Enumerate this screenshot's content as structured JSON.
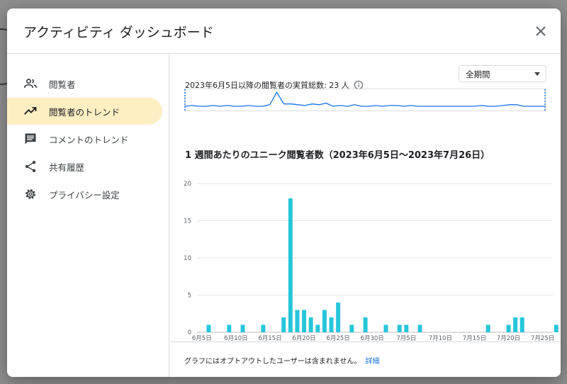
{
  "dialog": {
    "title": "アクティビティ ダッシュボード",
    "close_icon": "close-icon"
  },
  "sidebar": {
    "items": [
      {
        "label": "閲覧者",
        "icon": "people-icon",
        "active": false
      },
      {
        "label": "閲覧者のトレンド",
        "icon": "trending-up-icon",
        "active": true
      },
      {
        "label": "コメントのトレンド",
        "icon": "comment-icon",
        "active": false
      },
      {
        "label": "共有履歴",
        "icon": "share-icon",
        "active": false
      },
      {
        "label": "プライバシー設定",
        "icon": "gear-icon",
        "active": false
      }
    ]
  },
  "main": {
    "summary": "2023年6月5日以降の閲覧者の実質総数: 23 人",
    "period": "全期間",
    "chart_title": "1 週間あたりのユニーク閲覧者数（2023年6月5日〜2023年7月26日）"
  },
  "footer": {
    "text": "グラフにはオプトアウトしたユーザーは含まれません。",
    "link": "詳細"
  },
  "colors": {
    "bar": "#26c6da",
    "line": "#1a73e8",
    "active_bg": "#feefc3"
  },
  "chart_data": {
    "type": "bar",
    "title": "1 週間あたりのユニーク閲覧者数（2023年6月5日〜2023年7月26日）",
    "x_start": "2023-06-05",
    "x_end": "2023-07-26",
    "x_ticks": [
      "6月5日",
      "6月10日",
      "6月15日",
      "6月20日",
      "6月25日",
      "6月30日",
      "7月5日",
      "7月10日",
      "7月15日",
      "7月20日",
      "7月25日"
    ],
    "y_ticks": [
      "0",
      "5",
      "10",
      "15",
      "20"
    ],
    "ylim": [
      0,
      20
    ],
    "grid": true,
    "x": [
      "2023-06-06",
      "2023-06-09",
      "2023-06-11",
      "2023-06-14",
      "2023-06-17",
      "2023-06-18",
      "2023-06-19",
      "2023-06-20",
      "2023-06-21",
      "2023-06-22",
      "2023-06-23",
      "2023-06-24",
      "2023-06-25",
      "2023-06-27",
      "2023-06-29",
      "2023-07-02",
      "2023-07-04",
      "2023-07-05",
      "2023-07-07",
      "2023-07-17",
      "2023-07-20",
      "2023-07-21",
      "2023-07-22",
      "2023-07-27"
    ],
    "values": [
      1,
      1,
      1,
      1,
      2,
      18,
      3,
      3,
      2,
      1,
      3,
      2,
      4,
      1,
      2,
      1,
      1,
      1,
      1,
      1,
      1,
      2,
      2,
      1
    ]
  }
}
